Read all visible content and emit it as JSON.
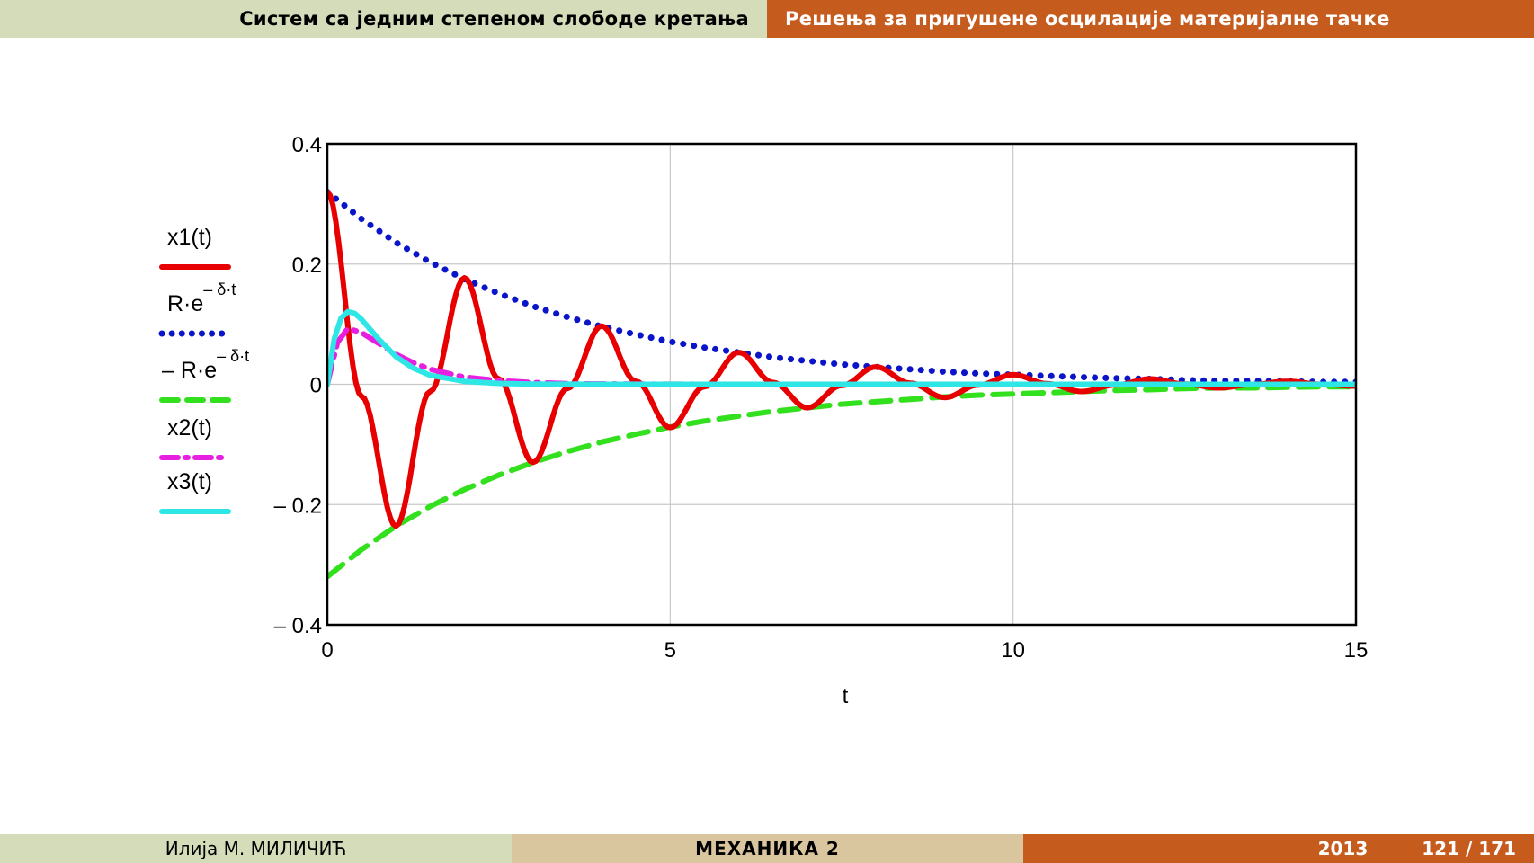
{
  "header": {
    "left": "Систем са једним степеном слободе кретања",
    "right": "Решења за пригушене осцилације материјалне тачке"
  },
  "footer": {
    "author": "Илија М. МИЛИЧИЋ",
    "course": "МЕХАНИКА 2",
    "year": "2013",
    "page": "121 / 171"
  },
  "chart_data": {
    "type": "line",
    "xlabel": "t",
    "ylabel": "",
    "xlim": [
      0,
      15
    ],
    "ylim": [
      -0.4,
      0.4
    ],
    "grid": true,
    "legend_position": "left",
    "x_ticks": [
      "0",
      "5",
      "10",
      "15"
    ],
    "y_ticks": [
      "0.4",
      "0.2",
      "0",
      "– 0.2",
      "– 0.4"
    ],
    "x": [
      0,
      0.5,
      1,
      1.5,
      2,
      2.5,
      3,
      3.5,
      4,
      4.5,
      5,
      5.5,
      6,
      6.5,
      7,
      7.5,
      8,
      8.5,
      9,
      9.5,
      10,
      10.5,
      11,
      11.5,
      12,
      12.5,
      13,
      13.5,
      14,
      14.5,
      15
    ],
    "series": [
      {
        "name": "x1(t)",
        "color": "#e80000",
        "style": "solid",
        "values": [
          0.32,
          -0.02,
          -0.236,
          -0.012,
          0.177,
          0.009,
          -0.13,
          -0.007,
          0.097,
          0.005,
          -0.072,
          -0.004,
          0.053,
          0.003,
          -0.039,
          -0.002,
          0.029,
          0.002,
          -0.022,
          -0.001,
          0.016,
          0.001,
          -0.012,
          -0.001,
          0.009,
          0.0005,
          -0.006,
          0,
          0.005,
          0,
          -0.003
        ]
      },
      {
        "name": "R·e^(– δ·t)",
        "legend_main": "R·e",
        "legend_sup": "– δ·t",
        "color": "#0a14c8",
        "style": "dotted",
        "values": [
          0.32,
          0.275,
          0.236,
          0.203,
          0.175,
          0.151,
          0.13,
          0.112,
          0.096,
          0.083,
          0.071,
          0.061,
          0.053,
          0.045,
          0.039,
          0.033,
          0.029,
          0.025,
          0.021,
          0.018,
          0.016,
          0.014,
          0.012,
          0.01,
          0.009,
          0.007,
          0.006,
          0.006,
          0.005,
          0.004,
          0.004
        ]
      },
      {
        "name": "– R·e^(– δ·t)",
        "legend_main": "– R·e",
        "legend_sup": "– δ·t",
        "color": "#33e01e",
        "style": "dashed",
        "values": [
          -0.32,
          -0.275,
          -0.236,
          -0.203,
          -0.175,
          -0.151,
          -0.13,
          -0.112,
          -0.096,
          -0.083,
          -0.071,
          -0.061,
          -0.053,
          -0.045,
          -0.039,
          -0.033,
          -0.029,
          -0.025,
          -0.021,
          -0.018,
          -0.016,
          -0.014,
          -0.012,
          -0.01,
          -0.009,
          -0.007,
          -0.006,
          -0.006,
          -0.005,
          -0.004,
          -0.004
        ]
      },
      {
        "name": "x2(t)",
        "color": "#e81ee0",
        "style": "dashdot",
        "x": [
          0,
          0.15,
          0.3,
          0.5,
          0.75,
          1,
          1.25,
          1.5,
          2,
          2.5,
          3,
          3.5,
          4,
          5,
          6,
          8,
          10,
          12,
          15
        ],
        "values": [
          0,
          0.07,
          0.093,
          0.086,
          0.068,
          0.05,
          0.036,
          0.025,
          0.012,
          0.006,
          0.003,
          0.001,
          0.0006,
          0.0001,
          0,
          0,
          0,
          0,
          0
        ]
      },
      {
        "name": "x3(t)",
        "color": "#2ee6e6",
        "style": "solid",
        "x": [
          0,
          0.1,
          0.2,
          0.3,
          0.4,
          0.5,
          0.75,
          1,
          1.25,
          1.5,
          2,
          2.5,
          3,
          4,
          5,
          6,
          8,
          10,
          12,
          15
        ],
        "values": [
          0,
          0.075,
          0.11,
          0.121,
          0.118,
          0.108,
          0.075,
          0.046,
          0.027,
          0.015,
          0.005,
          0.0015,
          0.0004,
          0,
          0,
          0,
          0,
          0,
          0,
          0
        ]
      }
    ]
  }
}
